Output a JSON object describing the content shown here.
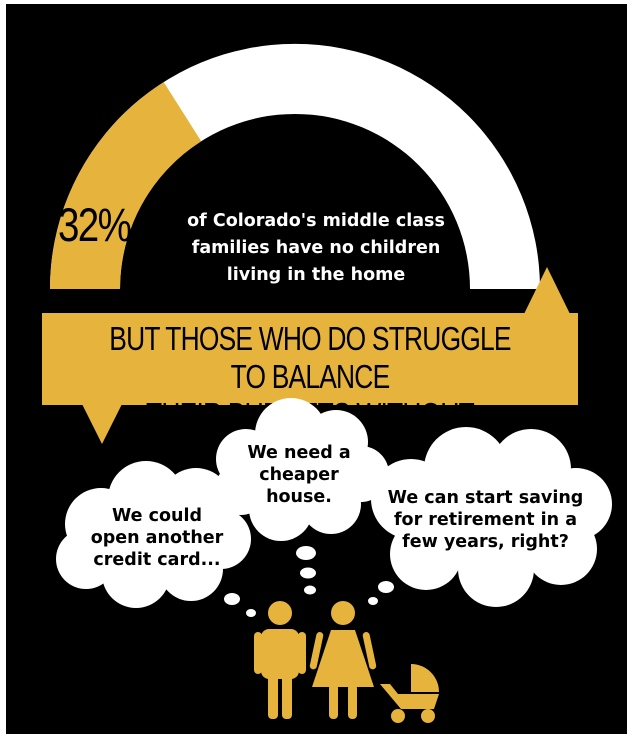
{
  "chart_data": {
    "type": "gauge",
    "value": 32,
    "max": 100,
    "value_label": "32%",
    "description_lines": [
      "of Colorado's middle class",
      "families have no children",
      "living in the home"
    ]
  },
  "banner": {
    "lines": [
      "BUT THOSE WHO DO STRUGGLE TO BALANCE",
      "THEIR BUDGETS WITHOUT MAKING TRADEOFFS"
    ]
  },
  "thoughts": {
    "left": [
      "We could",
      "open another",
      "credit card..."
    ],
    "middle": [
      "We need a",
      "cheaper",
      "house."
    ],
    "right": [
      "We can start saving",
      "for retirement in a",
      "few years, right?"
    ]
  },
  "colors": {
    "accent": "#e6b43c",
    "background": "#000000",
    "cloud": "#ffffff"
  },
  "icons": [
    "man-icon",
    "woman-icon",
    "stroller-icon"
  ]
}
